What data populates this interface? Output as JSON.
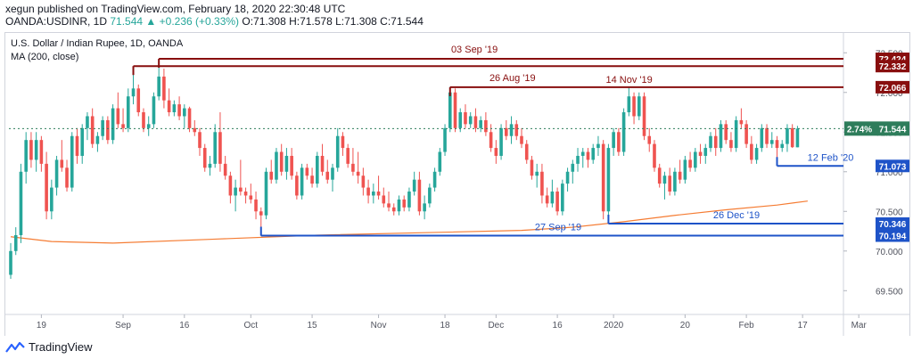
{
  "header": {
    "line1": "xegun published on TradingView.com, February 18, 2020 22:30:48 UTC",
    "symbol": "OANDA:USDINR, 1D",
    "last": "71.544",
    "change": "▲ +0.236 (+0.33%)",
    "ohlc": "O:71.308 H:71.578 L:71.308 C:71.544"
  },
  "legend": {
    "title": "U.S. Dollar / Indian Rupee, 1D, OANDA",
    "ma": "MA (200, close)"
  },
  "footer": {
    "brand": "TradingView"
  },
  "colors": {
    "up": "#26a69a",
    "down": "#ef5350",
    "ma": "#f57c33",
    "resistance": "#880e0e",
    "support": "#1e53c8",
    "current": "#2e7d5b"
  },
  "chart_data": {
    "type": "candlestick",
    "title": "U.S. Dollar / Indian Rupee, 1D, OANDA",
    "ylim": [
      69.2,
      72.75
    ],
    "y_ticks": [
      69.5,
      70.0,
      70.5,
      71.0,
      71.5,
      72.0,
      72.5
    ],
    "x_ticks": [
      "19",
      "Sep",
      "16",
      "Oct",
      "15",
      "Nov",
      "18",
      "Dec",
      "16",
      "2020",
      "20",
      "Feb",
      "17",
      "Mar"
    ],
    "candles": [
      [
        69.7,
        70.1,
        69.65,
        70.0
      ],
      [
        70.0,
        70.3,
        69.95,
        70.2
      ],
      [
        70.2,
        71.1,
        70.1,
        71.0
      ],
      [
        71.0,
        71.5,
        70.85,
        71.4
      ],
      [
        71.4,
        71.5,
        71.05,
        71.15
      ],
      [
        71.15,
        71.5,
        71.0,
        71.4
      ],
      [
        71.4,
        71.45,
        71.0,
        71.1
      ],
      [
        71.1,
        71.25,
        70.4,
        70.5
      ],
      [
        70.5,
        70.9,
        70.4,
        70.8
      ],
      [
        70.8,
        71.2,
        70.7,
        71.15
      ],
      [
        71.15,
        71.4,
        71.0,
        71.05
      ],
      [
        71.05,
        71.15,
        70.75,
        70.8
      ],
      [
        70.8,
        71.5,
        70.75,
        71.45
      ],
      [
        71.45,
        71.55,
        71.1,
        71.2
      ],
      [
        71.2,
        71.6,
        71.1,
        71.55
      ],
      [
        71.55,
        71.75,
        71.4,
        71.7
      ],
      [
        71.7,
        71.8,
        71.3,
        71.35
      ],
      [
        71.35,
        71.5,
        71.25,
        71.45
      ],
      [
        71.45,
        71.7,
        71.4,
        71.65
      ],
      [
        71.65,
        71.7,
        71.35,
        71.4
      ],
      [
        71.4,
        71.85,
        71.35,
        71.8
      ],
      [
        71.8,
        72.0,
        71.55,
        71.6
      ],
      [
        71.6,
        71.8,
        71.5,
        71.55
      ],
      [
        71.55,
        72.05,
        71.5,
        71.95
      ],
      [
        71.95,
        72.33,
        71.85,
        72.05
      ],
      [
        72.05,
        72.1,
        71.7,
        71.75
      ],
      [
        71.75,
        71.8,
        71.5,
        71.55
      ],
      [
        71.55,
        71.7,
        71.45,
        71.6
      ],
      [
        71.6,
        72.0,
        71.55,
        71.95
      ],
      [
        71.95,
        72.42,
        71.9,
        72.2
      ],
      [
        72.2,
        72.3,
        71.8,
        71.9
      ],
      [
        71.9,
        72.05,
        71.7,
        71.75
      ],
      [
        71.75,
        71.9,
        71.7,
        71.85
      ],
      [
        71.85,
        71.95,
        71.65,
        71.7
      ],
      [
        71.7,
        71.85,
        71.55,
        71.8
      ],
      [
        71.8,
        71.82,
        71.5,
        71.55
      ],
      [
        71.55,
        71.65,
        71.45,
        71.5
      ],
      [
        71.5,
        71.55,
        71.2,
        71.3
      ],
      [
        71.3,
        71.35,
        71.0,
        71.05
      ],
      [
        71.05,
        71.2,
        70.95,
        71.1
      ],
      [
        71.1,
        71.6,
        71.05,
        71.5
      ],
      [
        71.5,
        71.75,
        71.0,
        71.1
      ],
      [
        71.1,
        71.2,
        70.9,
        70.95
      ],
      [
        70.95,
        71.0,
        70.6,
        70.7
      ],
      [
        70.7,
        70.9,
        70.5,
        70.8
      ],
      [
        70.8,
        71.15,
        70.7,
        70.75
      ],
      [
        70.75,
        70.8,
        70.6,
        70.7
      ],
      [
        70.7,
        70.85,
        70.6,
        70.65
      ],
      [
        70.65,
        70.75,
        70.4,
        70.5
      ],
      [
        70.5,
        70.55,
        70.19,
        70.45
      ],
      [
        70.45,
        71.05,
        70.4,
        71.0
      ],
      [
        71.0,
        71.15,
        70.85,
        70.9
      ],
      [
        70.9,
        71.3,
        70.85,
        71.25
      ],
      [
        71.25,
        71.35,
        70.95,
        71.0
      ],
      [
        71.0,
        71.3,
        70.9,
        71.2
      ],
      [
        71.2,
        71.3,
        70.9,
        70.95
      ],
      [
        70.95,
        71.0,
        70.65,
        70.7
      ],
      [
        70.7,
        71.1,
        70.65,
        71.05
      ],
      [
        71.05,
        71.1,
        70.9,
        70.95
      ],
      [
        70.95,
        71.05,
        70.8,
        70.85
      ],
      [
        70.85,
        71.25,
        70.8,
        71.2
      ],
      [
        71.2,
        71.35,
        70.95,
        71.0
      ],
      [
        71.0,
        71.15,
        70.85,
        70.9
      ],
      [
        70.9,
        71.1,
        70.75,
        71.05
      ],
      [
        71.05,
        71.55,
        71.0,
        71.45
      ],
      [
        71.45,
        71.5,
        71.2,
        71.3
      ],
      [
        71.3,
        71.35,
        71.05,
        71.1
      ],
      [
        71.1,
        71.3,
        70.95,
        71.0
      ],
      [
        71.0,
        71.25,
        70.85,
        70.95
      ],
      [
        70.95,
        71.05,
        70.7,
        70.8
      ],
      [
        70.8,
        70.9,
        70.6,
        70.7
      ],
      [
        70.7,
        70.85,
        70.6,
        70.75
      ],
      [
        70.75,
        70.95,
        70.65,
        70.7
      ],
      [
        70.7,
        70.8,
        70.55,
        70.6
      ],
      [
        70.6,
        70.75,
        70.5,
        70.55
      ],
      [
        70.55,
        70.6,
        70.45,
        70.5
      ],
      [
        70.5,
        70.7,
        70.45,
        70.65
      ],
      [
        70.65,
        70.7,
        70.5,
        70.55
      ],
      [
        70.55,
        70.8,
        70.5,
        70.75
      ],
      [
        70.75,
        71.0,
        70.7,
        70.9
      ],
      [
        70.9,
        71.0,
        70.45,
        70.5
      ],
      [
        70.5,
        70.7,
        70.4,
        70.6
      ],
      [
        70.6,
        70.85,
        70.55,
        70.8
      ],
      [
        70.8,
        71.05,
        70.75,
        71.0
      ],
      [
        71.0,
        71.3,
        70.95,
        71.25
      ],
      [
        71.25,
        71.6,
        71.2,
        71.55
      ],
      [
        71.55,
        72.07,
        71.5,
        72.0
      ],
      [
        72.0,
        72.05,
        71.5,
        71.55
      ],
      [
        71.55,
        71.8,
        71.5,
        71.75
      ],
      [
        71.75,
        71.85,
        71.55,
        71.6
      ],
      [
        71.6,
        71.75,
        71.55,
        71.7
      ],
      [
        71.7,
        71.8,
        71.5,
        71.55
      ],
      [
        71.55,
        71.7,
        71.5,
        71.65
      ],
      [
        71.65,
        71.75,
        71.45,
        71.5
      ],
      [
        71.5,
        71.6,
        71.25,
        71.3
      ],
      [
        71.3,
        71.4,
        71.1,
        71.2
      ],
      [
        71.2,
        71.6,
        71.15,
        71.55
      ],
      [
        71.55,
        71.65,
        71.4,
        71.45
      ],
      [
        71.45,
        71.7,
        71.35,
        71.6
      ],
      [
        71.6,
        71.65,
        71.4,
        71.45
      ],
      [
        71.45,
        71.55,
        71.3,
        71.35
      ],
      [
        71.35,
        71.4,
        71.1,
        71.15
      ],
      [
        71.15,
        71.2,
        70.9,
        70.95
      ],
      [
        70.95,
        71.1,
        70.8,
        71.0
      ],
      [
        71.0,
        71.1,
        70.6,
        70.7
      ],
      [
        70.7,
        70.8,
        70.55,
        70.6
      ],
      [
        70.6,
        70.9,
        70.55,
        70.75
      ],
      [
        70.75,
        70.8,
        70.45,
        70.5
      ],
      [
        70.5,
        70.9,
        70.45,
        70.85
      ],
      [
        70.85,
        71.05,
        70.75,
        71.0
      ],
      [
        71.0,
        71.15,
        70.85,
        71.1
      ],
      [
        71.1,
        71.3,
        71.0,
        71.2
      ],
      [
        71.2,
        71.3,
        71.05,
        71.25
      ],
      [
        71.25,
        71.3,
        71.05,
        71.15
      ],
      [
        71.15,
        71.35,
        71.1,
        71.3
      ],
      [
        71.3,
        71.45,
        71.2,
        71.35
      ],
      [
        71.35,
        71.4,
        70.4,
        70.5
      ],
      [
        70.5,
        71.35,
        70.35,
        71.3
      ],
      [
        71.3,
        71.55,
        71.2,
        71.5
      ],
      [
        71.5,
        71.55,
        71.2,
        71.25
      ],
      [
        71.25,
        71.8,
        71.2,
        71.75
      ],
      [
        71.75,
        72.07,
        71.7,
        71.95
      ],
      [
        71.95,
        72.0,
        71.6,
        71.7
      ],
      [
        71.7,
        72.0,
        71.65,
        71.95
      ],
      [
        71.95,
        72.0,
        71.4,
        71.45
      ],
      [
        71.45,
        71.55,
        71.25,
        71.35
      ],
      [
        71.35,
        71.4,
        71.0,
        71.05
      ],
      [
        71.05,
        71.1,
        70.8,
        70.85
      ],
      [
        70.85,
        71.0,
        70.65,
        70.95
      ],
      [
        70.95,
        71.05,
        70.7,
        70.75
      ],
      [
        70.75,
        71.05,
        70.7,
        71.0
      ],
      [
        71.0,
        71.15,
        70.85,
        70.9
      ],
      [
        70.9,
        71.2,
        70.85,
        71.15
      ],
      [
        71.15,
        71.25,
        71.0,
        71.05
      ],
      [
        71.05,
        71.3,
        71.0,
        71.25
      ],
      [
        71.25,
        71.35,
        71.1,
        71.2
      ],
      [
        71.2,
        71.35,
        71.1,
        71.3
      ],
      [
        71.3,
        71.5,
        71.25,
        71.45
      ],
      [
        71.45,
        71.55,
        71.2,
        71.3
      ],
      [
        71.3,
        71.65,
        71.25,
        71.6
      ],
      [
        71.6,
        71.65,
        71.35,
        71.4
      ],
      [
        71.4,
        71.5,
        71.25,
        71.3
      ],
      [
        71.3,
        71.7,
        71.25,
        71.65
      ],
      [
        71.65,
        71.8,
        71.55,
        71.6
      ],
      [
        71.6,
        71.65,
        71.3,
        71.35
      ],
      [
        71.35,
        71.45,
        71.1,
        71.15
      ],
      [
        71.15,
        71.35,
        71.1,
        71.3
      ],
      [
        71.3,
        71.6,
        71.25,
        71.55
      ],
      [
        71.55,
        71.6,
        71.3,
        71.35
      ],
      [
        71.35,
        71.5,
        71.3,
        71.4
      ],
      [
        71.4,
        71.45,
        71.1,
        71.3
      ],
      [
        71.3,
        71.4,
        71.25,
        71.35
      ],
      [
        71.35,
        71.6,
        71.25,
        71.55
      ],
      [
        71.55,
        71.6,
        71.3,
        71.31
      ],
      [
        71.308,
        71.578,
        71.308,
        71.544
      ]
    ],
    "ma200": [
      [
        0,
        70.18
      ],
      [
        8,
        70.12
      ],
      [
        20,
        70.1
      ],
      [
        40,
        70.15
      ],
      [
        60,
        70.2
      ],
      [
        80,
        70.23
      ],
      [
        100,
        70.26
      ],
      [
        110,
        70.3
      ],
      [
        120,
        70.37
      ],
      [
        130,
        70.45
      ],
      [
        140,
        70.52
      ],
      [
        150,
        70.58
      ],
      [
        156,
        70.63
      ]
    ],
    "levels": [
      {
        "label": "03 Sep '19",
        "value": 72.424,
        "price_label": "72.424",
        "start": 29,
        "kind": "resistance"
      },
      {
        "label": "",
        "value": 72.332,
        "price_label": "72.332",
        "start": 24,
        "kind": "resistance"
      },
      {
        "label": "26 Aug '19",
        "value": 72.066,
        "price_label": "72.066",
        "start": 86,
        "kind": "resistance"
      },
      {
        "label": "14 Nov '19",
        "value": 72.066,
        "price_label": "",
        "start": 120,
        "kind": "resistance_label_only"
      },
      {
        "label": "12 Feb '20",
        "value": 71.073,
        "price_label": "71.073",
        "start": 150,
        "kind": "support"
      },
      {
        "label": "26 Dec '19",
        "value": 70.346,
        "price_label": "70.346",
        "start": 117,
        "kind": "support"
      },
      {
        "label": "27 Sep '19",
        "value": 70.194,
        "price_label": "70.194",
        "start": 49,
        "kind": "support"
      }
    ],
    "current": {
      "value": 71.544,
      "price_label": "71.544",
      "pct_label": "2.74%"
    }
  }
}
